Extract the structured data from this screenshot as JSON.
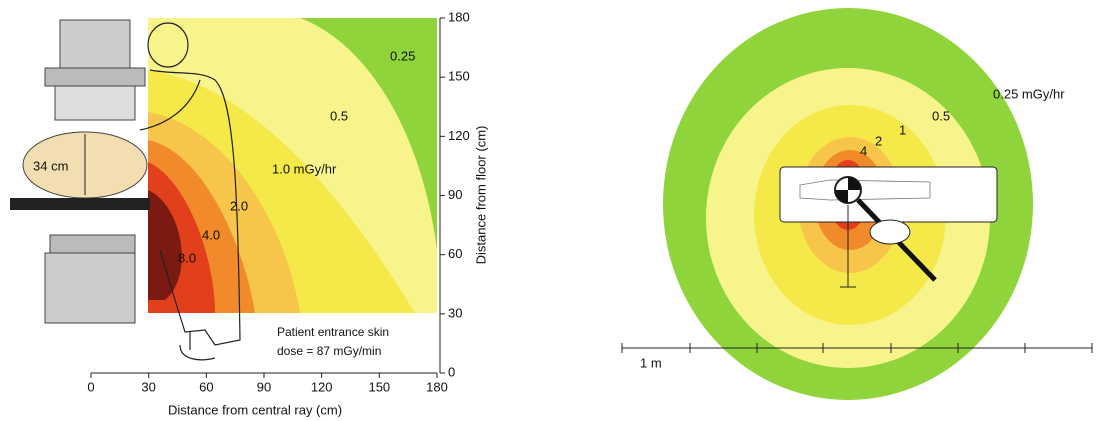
{
  "left_panel": {
    "x_axis": {
      "title": "Distance from central ray (cm)",
      "ticks": [
        0,
        30,
        60,
        90,
        120,
        150,
        180
      ]
    },
    "y_axis": {
      "title": "Distance from floor (cm)",
      "ticks": [
        0,
        30,
        60,
        90,
        120,
        150,
        180
      ]
    },
    "contour_labels": [
      "0.25",
      "0.5",
      "1.0 mGy/hr",
      "2.0",
      "4.0",
      "8.0"
    ],
    "size_label": "34 cm",
    "note": [
      "Patient entrance skin",
      "dose = 87 mGy/min"
    ]
  },
  "right_panel": {
    "contour_labels": [
      "0.25 mGy/hr",
      "0.5",
      "1",
      "2",
      "4"
    ],
    "scale_label": "1 m"
  }
}
